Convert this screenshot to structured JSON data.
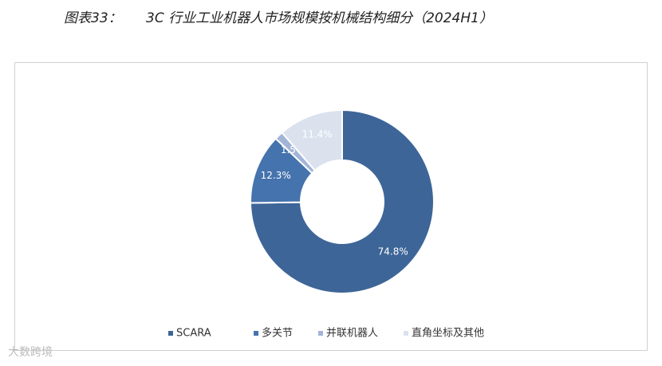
{
  "chart_data": {
    "type": "pie",
    "figure_label": "图表33：",
    "title": "3C 行业工业机器人市场规模按机械结构细分（2024H1）",
    "categories": [
      "SCARA",
      "多关节",
      "并联机器人",
      "直角坐标及其他"
    ],
    "values": [
      74.8,
      12.3,
      1.5,
      11.4
    ],
    "value_labels": [
      "74.8%",
      "12.3%",
      "1.5%",
      "11.4%"
    ],
    "colors": [
      "#3d6598",
      "#4573ad",
      "#a2b5d7",
      "#dbe2ee"
    ],
    "donut": true,
    "legend": "bottom"
  },
  "watermark": "大数跨境"
}
